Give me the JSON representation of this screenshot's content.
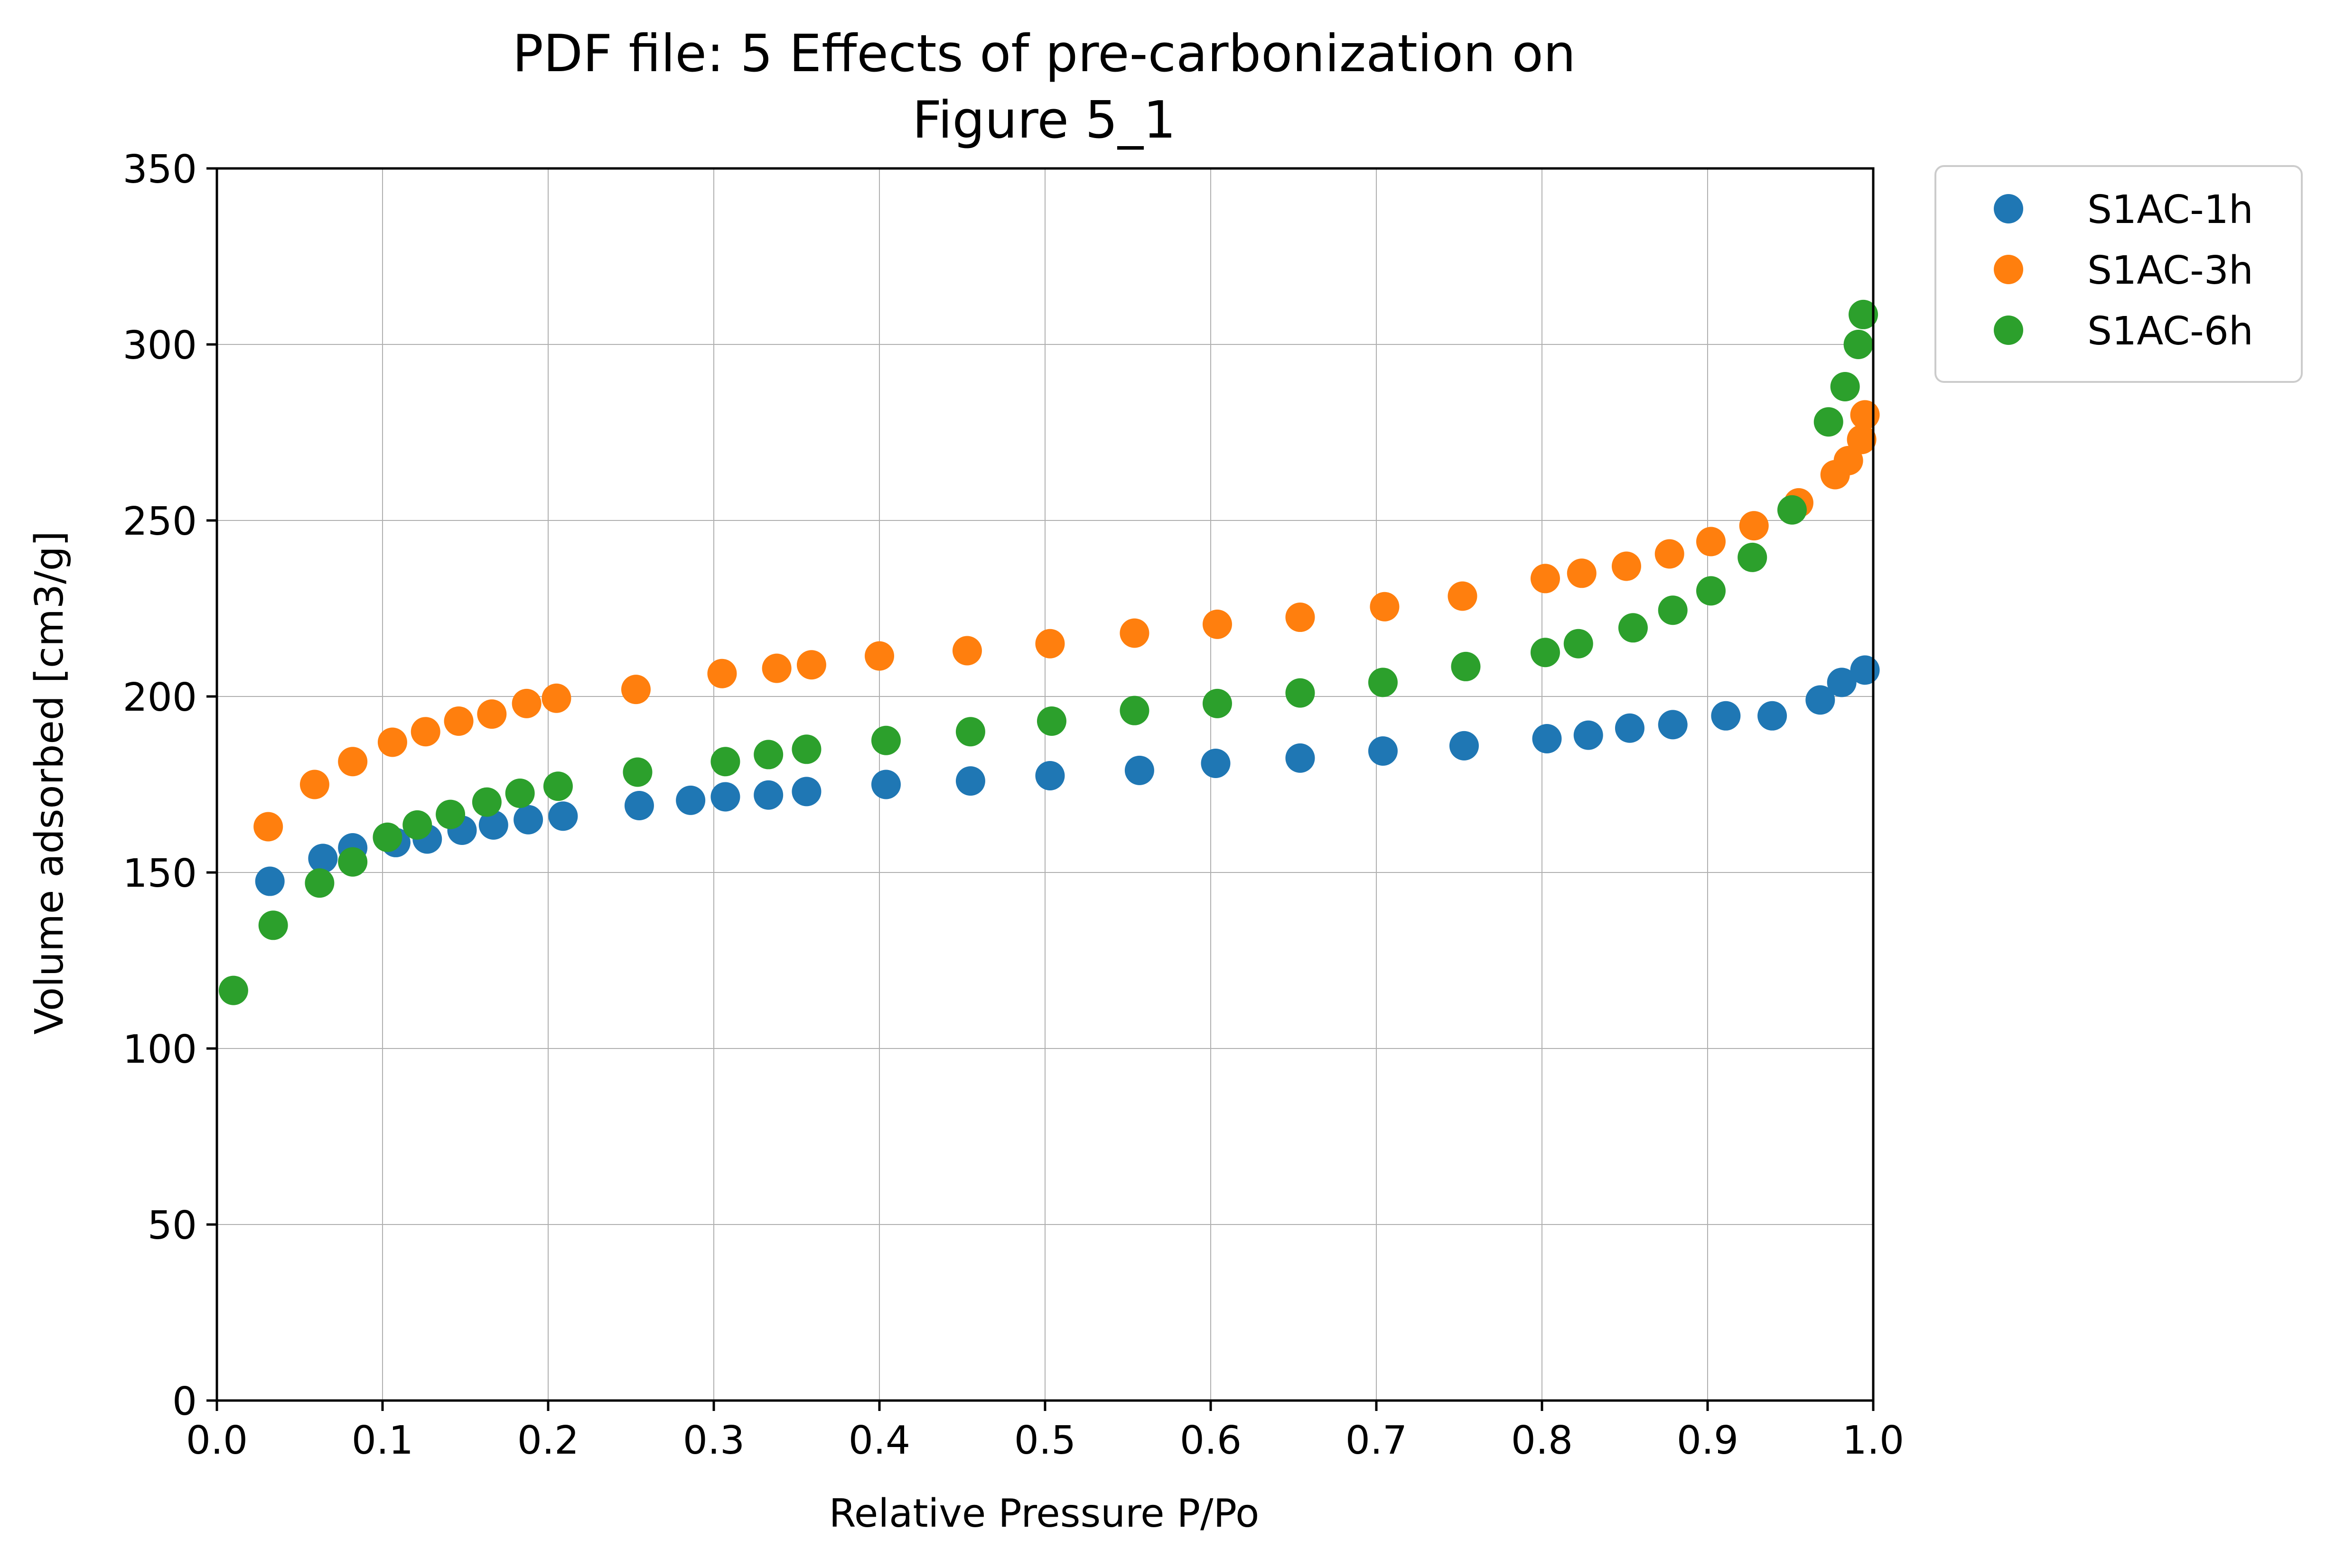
{
  "chart_data": {
    "type": "scatter",
    "title": "PDF file: 5 Effects of pre-carbonization on\nFigure 5_1",
    "title_lines": [
      "PDF file: 5 Effects of pre-carbonization on",
      "Figure 5_1"
    ],
    "xlabel": "Relative Pressure P/Po",
    "ylabel": "Volume adsorbed [cm3/g]",
    "xlim": [
      0.0,
      1.0
    ],
    "ylim": [
      0,
      350
    ],
    "xticks": [
      "0.0",
      "0.1",
      "0.2",
      "0.3",
      "0.4",
      "0.5",
      "0.6",
      "0.7",
      "0.8",
      "0.9",
      "1.0"
    ],
    "yticks": [
      "0",
      "50",
      "100",
      "150",
      "200",
      "250",
      "300",
      "350"
    ],
    "grid": true,
    "legend_position": "outside-top-right",
    "series": [
      {
        "name": "S1AC-1h",
        "color": "#1f77b4",
        "points": [
          [
            0.032,
            147.5
          ],
          [
            0.064,
            154
          ],
          [
            0.082,
            157
          ],
          [
            0.108,
            158.5
          ],
          [
            0.127,
            159.5
          ],
          [
            0.148,
            162
          ],
          [
            0.167,
            163.5
          ],
          [
            0.188,
            165
          ],
          [
            0.209,
            166
          ],
          [
            0.255,
            169
          ],
          [
            0.286,
            170.5
          ],
          [
            0.307,
            171.5
          ],
          [
            0.333,
            172
          ],
          [
            0.356,
            173
          ],
          [
            0.404,
            175
          ],
          [
            0.455,
            176
          ],
          [
            0.503,
            177.5
          ],
          [
            0.557,
            179
          ],
          [
            0.603,
            181
          ],
          [
            0.654,
            182.5
          ],
          [
            0.704,
            184.5
          ],
          [
            0.753,
            186
          ],
          [
            0.803,
            188
          ],
          [
            0.828,
            189
          ],
          [
            0.853,
            191
          ],
          [
            0.879,
            192
          ],
          [
            0.911,
            194.5
          ],
          [
            0.939,
            194.5
          ],
          [
            0.968,
            199
          ],
          [
            0.981,
            204
          ],
          [
            0.995,
            207.5
          ]
        ]
      },
      {
        "name": "S1AC-3h",
        "color": "#ff7f0e",
        "points": [
          [
            0.031,
            163
          ],
          [
            0.059,
            175
          ],
          [
            0.082,
            181.5
          ],
          [
            0.106,
            187
          ],
          [
            0.126,
            190
          ],
          [
            0.146,
            193
          ],
          [
            0.166,
            195
          ],
          [
            0.187,
            198
          ],
          [
            0.205,
            199.5
          ],
          [
            0.253,
            202
          ],
          [
            0.305,
            206.5
          ],
          [
            0.338,
            208
          ],
          [
            0.359,
            209
          ],
          [
            0.4,
            211.5
          ],
          [
            0.453,
            213
          ],
          [
            0.503,
            215
          ],
          [
            0.554,
            218
          ],
          [
            0.604,
            220.5
          ],
          [
            0.654,
            222.5
          ],
          [
            0.705,
            225.5
          ],
          [
            0.752,
            228.5
          ],
          [
            0.802,
            233.5
          ],
          [
            0.824,
            235
          ],
          [
            0.851,
            237
          ],
          [
            0.877,
            240.5
          ],
          [
            0.902,
            244
          ],
          [
            0.928,
            248.5
          ],
          [
            0.955,
            255
          ],
          [
            0.977,
            263
          ],
          [
            0.985,
            267
          ],
          [
            0.993,
            273
          ],
          [
            0.995,
            280
          ]
        ]
      },
      {
        "name": "S1AC-6h",
        "color": "#2ca02c",
        "points": [
          [
            0.01,
            116.5
          ],
          [
            0.034,
            135
          ],
          [
            0.062,
            147
          ],
          [
            0.082,
            153
          ],
          [
            0.103,
            160
          ],
          [
            0.121,
            163.5
          ],
          [
            0.141,
            166.5
          ],
          [
            0.163,
            170
          ],
          [
            0.183,
            172.5
          ],
          [
            0.206,
            174.5
          ],
          [
            0.254,
            178.5
          ],
          [
            0.307,
            181.5
          ],
          [
            0.333,
            183.5
          ],
          [
            0.356,
            185
          ],
          [
            0.404,
            187.5
          ],
          [
            0.455,
            190
          ],
          [
            0.504,
            193
          ],
          [
            0.554,
            196
          ],
          [
            0.604,
            198
          ],
          [
            0.654,
            201
          ],
          [
            0.704,
            204
          ],
          [
            0.754,
            208.5
          ],
          [
            0.802,
            212.5
          ],
          [
            0.822,
            215
          ],
          [
            0.855,
            219.5
          ],
          [
            0.879,
            224.5
          ],
          [
            0.902,
            230
          ],
          [
            0.927,
            239.5
          ],
          [
            0.951,
            253
          ],
          [
            0.973,
            278
          ],
          [
            0.983,
            288
          ],
          [
            0.991,
            300
          ],
          [
            0.994,
            308.5
          ]
        ]
      }
    ]
  }
}
